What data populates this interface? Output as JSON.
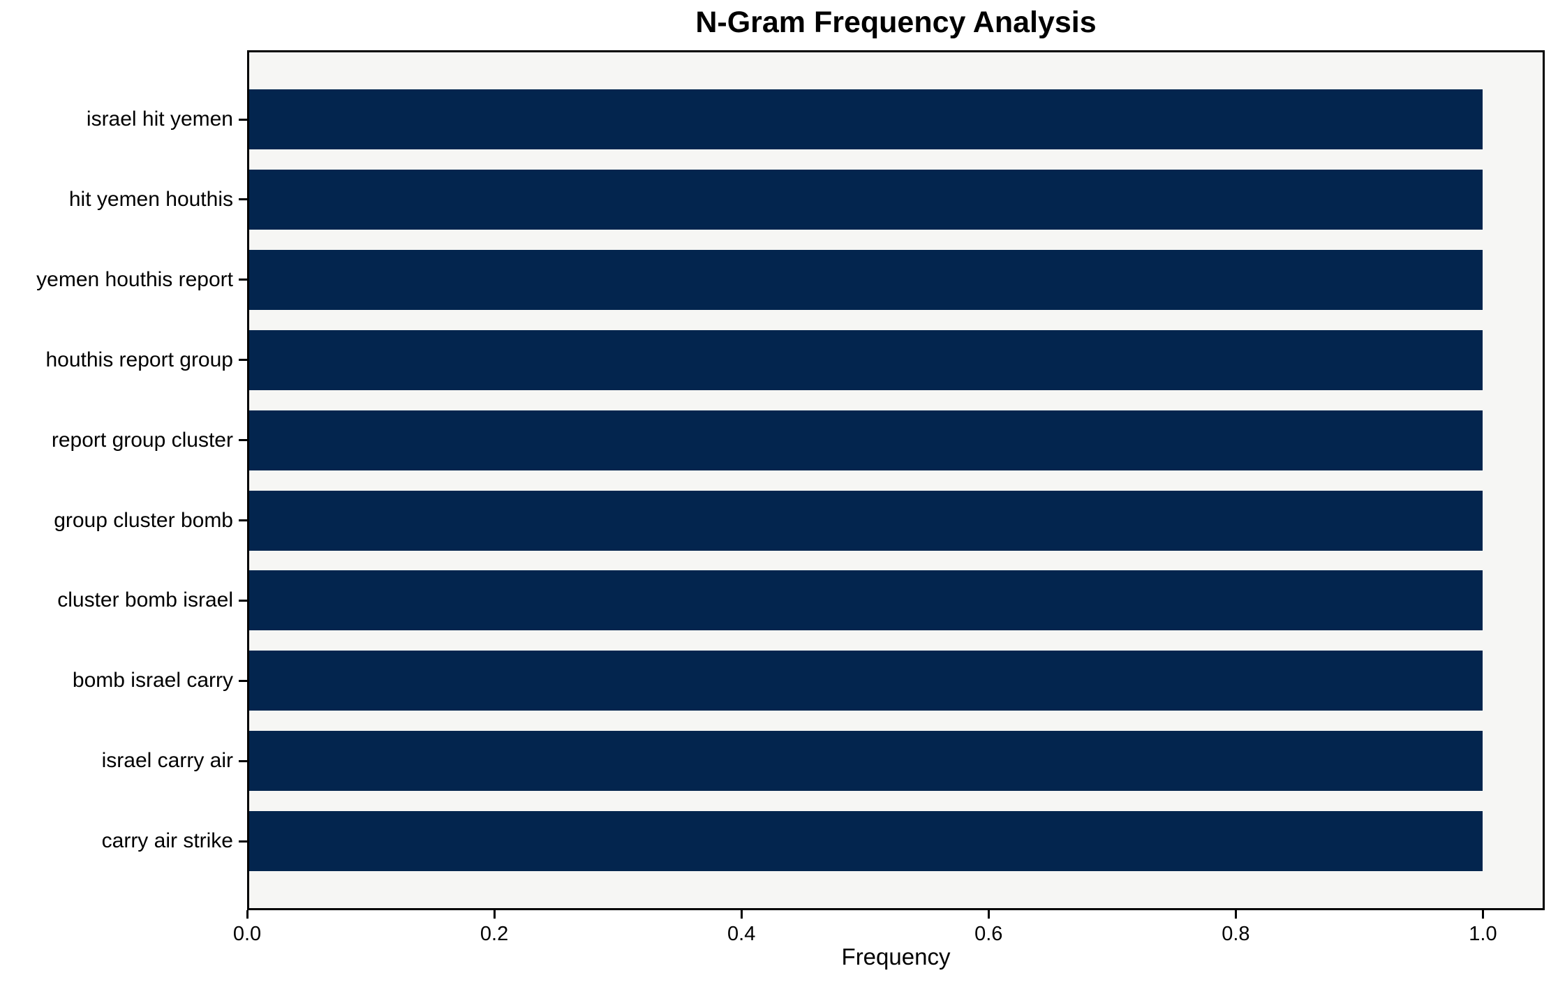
{
  "chart_data": {
    "type": "bar",
    "orientation": "horizontal",
    "title": "N-Gram Frequency Analysis",
    "xlabel": "Frequency",
    "ylabel": "",
    "categories": [
      "israel hit yemen",
      "hit yemen houthis",
      "yemen houthis report",
      "houthis report group",
      "report group cluster",
      "group cluster bomb",
      "cluster bomb israel",
      "bomb israel carry",
      "israel carry air",
      "carry air strike"
    ],
    "values": [
      1.0,
      1.0,
      1.0,
      1.0,
      1.0,
      1.0,
      1.0,
      1.0,
      1.0,
      1.0
    ],
    "xlim": [
      0.0,
      1.05
    ],
    "xticks": [
      0.0,
      0.2,
      0.4,
      0.6,
      0.8,
      1.0
    ],
    "grid": false,
    "legend_visible": false,
    "colors": {
      "bar": "#03254e",
      "plot_background": "#f6f6f4",
      "figure_background": "#ffffff",
      "axis": "#000000",
      "text": "#000000"
    }
  }
}
